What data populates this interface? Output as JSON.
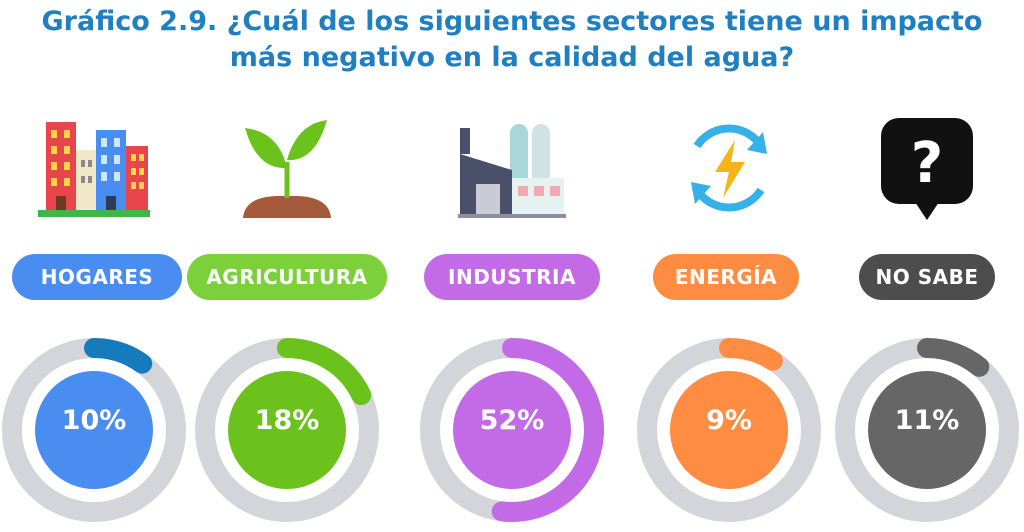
{
  "title_line1": "Gráfico 2.9. ¿Cuál de los siguientes sectores tiene un impacto",
  "title_line2": "más negativo en la calidad del agua?",
  "chart_data": {
    "type": "pie",
    "title": "Gráfico 2.9. ¿Cuál de los siguientes sectores tiene un impacto más negativo en la calidad del agua?",
    "categories": [
      "HOGARES",
      "AGRICULTURA",
      "INDUSTRIA",
      "ENERGÍA",
      "NO SABE"
    ],
    "values": [
      10,
      18,
      52,
      9,
      11
    ],
    "labels": [
      "10%",
      "18%",
      "52%",
      "9%",
      "11%"
    ],
    "colors": [
      "#4a8df0",
      "#6cc21c",
      "#c36be6",
      "#ff8c43",
      "#666666"
    ],
    "arc_colors": [
      "#167bbd",
      "#6cc21c",
      "#c36be6",
      "#ff8c43",
      "#666666"
    ],
    "icons": [
      "buildings-icon",
      "plant-sprout-icon",
      "factory-icon",
      "energy-cycle-icon",
      "question-bubble-icon"
    ]
  }
}
